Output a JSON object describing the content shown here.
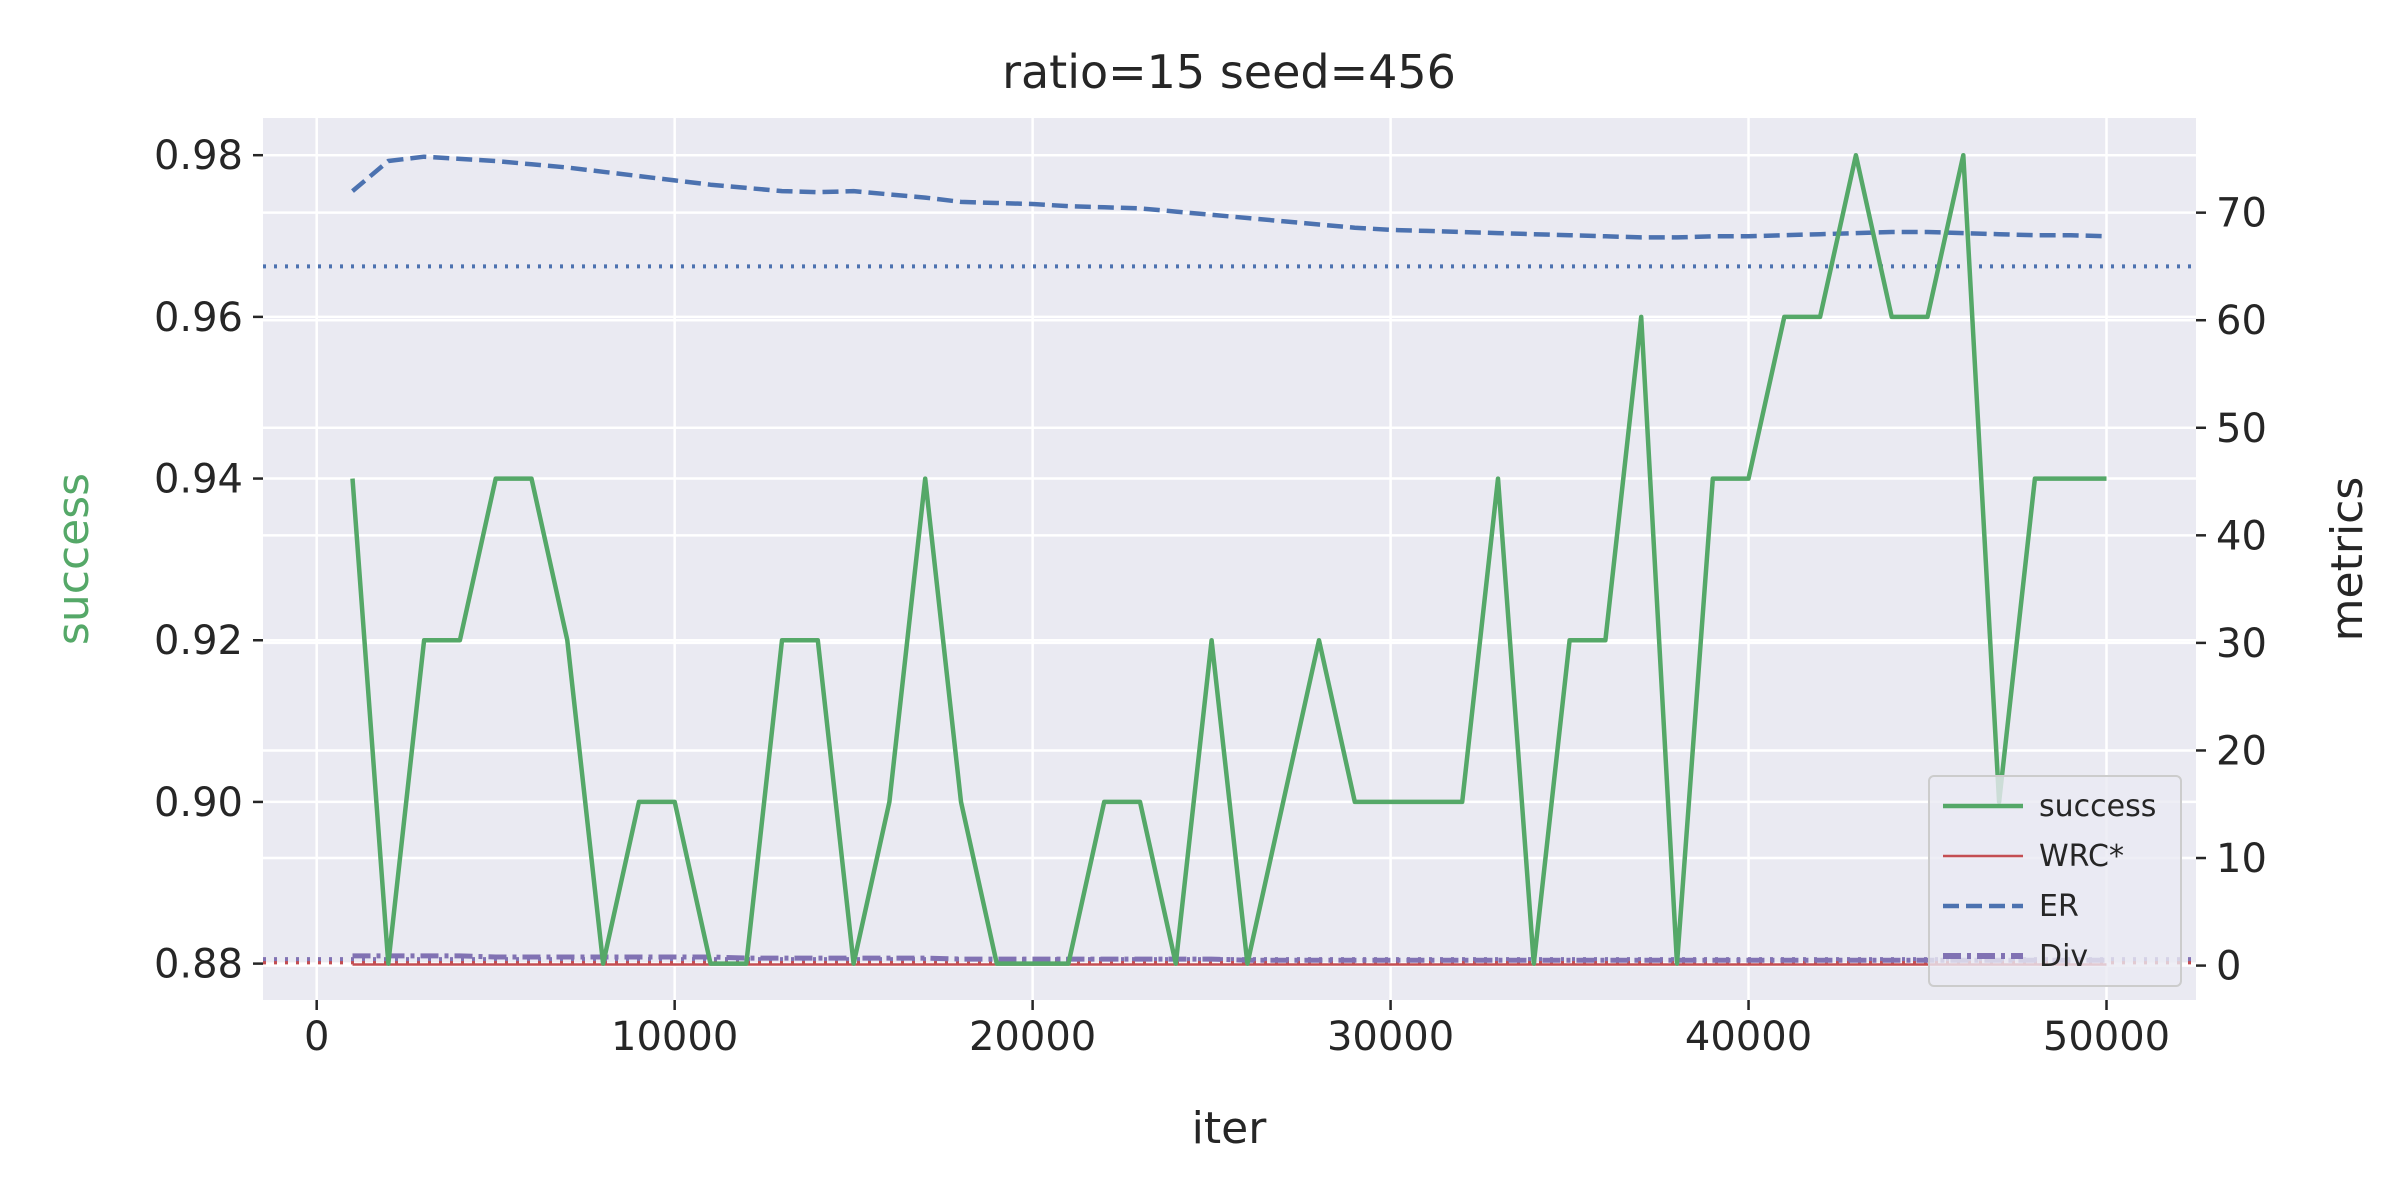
{
  "chart_data": {
    "type": "line",
    "title": "ratio=15 seed=456",
    "xlabel": "iter",
    "ylabel_left": "success",
    "ylabel_right": "metrics",
    "xlim": [
      -1500,
      52500
    ],
    "ylim_left": [
      0.8755,
      0.9846
    ],
    "ylim_right": [
      -3.2,
      78.8
    ],
    "xticks": [
      0,
      10000,
      20000,
      30000,
      40000,
      50000
    ],
    "xtick_labels": [
      "0",
      "10000",
      "20000",
      "30000",
      "40000",
      "50000"
    ],
    "yticks_left": [
      0.88,
      0.9,
      0.92,
      0.94,
      0.96,
      0.98
    ],
    "ytick_labels_left": [
      "0.88",
      "0.90",
      "0.92",
      "0.94",
      "0.96",
      "0.98"
    ],
    "yticks_right": [
      0,
      10,
      20,
      30,
      40,
      50,
      60,
      70
    ],
    "ytick_labels_right": [
      "0",
      "10",
      "20",
      "30",
      "40",
      "50",
      "60",
      "70"
    ],
    "grid": true,
    "legend_position": "lower-right",
    "x": [
      1000,
      2000,
      3000,
      4000,
      5000,
      6000,
      7000,
      8000,
      9000,
      10000,
      11000,
      12000,
      13000,
      14000,
      15000,
      16000,
      17000,
      18000,
      19000,
      20000,
      21000,
      22000,
      23000,
      24000,
      25000,
      26000,
      27000,
      28000,
      29000,
      30000,
      31000,
      32000,
      33000,
      34000,
      35000,
      36000,
      37000,
      38000,
      39000,
      40000,
      41000,
      42000,
      43000,
      44000,
      45000,
      46000,
      47000,
      48000,
      49000,
      50000
    ],
    "series": [
      {
        "name": "success",
        "axis": "left",
        "color": "#55a868",
        "style": "solid",
        "values": [
          0.94,
          0.88,
          0.92,
          0.92,
          0.94,
          0.94,
          0.92,
          0.88,
          0.9,
          0.9,
          0.88,
          0.88,
          0.92,
          0.92,
          0.88,
          0.9,
          0.94,
          0.9,
          0.88,
          0.88,
          0.88,
          0.9,
          0.9,
          0.88,
          0.92,
          0.88,
          0.9,
          0.92,
          0.9,
          0.9,
          0.9,
          0.9,
          0.94,
          0.88,
          0.92,
          0.92,
          0.96,
          0.88,
          0.94,
          0.94,
          0.96,
          0.96,
          0.98,
          0.96,
          0.96,
          0.98,
          0.9,
          0.94,
          0.94,
          0.94
        ]
      },
      {
        "name": "WRC*",
        "axis": "right",
        "color": "#c44e52",
        "style": "solid",
        "values": [
          0.1,
          0.1,
          0.1,
          0.1,
          0.1,
          0.1,
          0.1,
          0.1,
          0.1,
          0.1,
          0.1,
          0.1,
          0.1,
          0.1,
          0.1,
          0.1,
          0.1,
          0.1,
          0.1,
          0.1,
          0.1,
          0.1,
          0.1,
          0.1,
          0.1,
          0.1,
          0.1,
          0.1,
          0.1,
          0.1,
          0.1,
          0.1,
          0.1,
          0.1,
          0.1,
          0.1,
          0.1,
          0.1,
          0.1,
          0.1,
          0.1,
          0.1,
          0.1,
          0.1,
          0.1,
          0.1,
          0.1,
          0.1,
          0.1,
          0.1
        ]
      },
      {
        "name": "ER",
        "axis": "right",
        "color": "#4c72b0",
        "style": "dashed",
        "values": [
          72.0,
          74.8,
          75.2,
          75.0,
          74.8,
          74.5,
          74.2,
          73.8,
          73.4,
          73.0,
          72.6,
          72.3,
          72.0,
          71.9,
          72.0,
          71.7,
          71.4,
          71.0,
          70.9,
          70.8,
          70.6,
          70.5,
          70.4,
          70.1,
          69.8,
          69.5,
          69.2,
          68.9,
          68.6,
          68.4,
          68.3,
          68.2,
          68.1,
          68.0,
          67.9,
          67.8,
          67.7,
          67.7,
          67.8,
          67.8,
          67.9,
          68.0,
          68.1,
          68.2,
          68.2,
          68.1,
          68.0,
          67.9,
          67.9,
          67.8
        ]
      },
      {
        "name": "Div",
        "axis": "right",
        "color": "#8172b3",
        "style": "dashdot",
        "values": [
          0.9,
          0.9,
          0.9,
          0.9,
          0.8,
          0.8,
          0.8,
          0.8,
          0.8,
          0.8,
          0.8,
          0.7,
          0.7,
          0.7,
          0.7,
          0.7,
          0.7,
          0.6,
          0.6,
          0.6,
          0.6,
          0.6,
          0.6,
          0.6,
          0.6,
          0.5,
          0.5,
          0.5,
          0.5,
          0.5,
          0.5,
          0.5,
          0.5,
          0.5,
          0.5,
          0.5,
          0.5,
          0.5,
          0.5,
          0.5,
          0.5,
          0.5,
          0.5,
          0.5,
          0.5,
          0.5,
          0.5,
          0.5,
          0.5,
          0.5
        ]
      }
    ],
    "reference_lines": [
      {
        "axis": "right",
        "value": 65.0,
        "color": "#4c72b0",
        "style": "dotted"
      },
      {
        "axis": "right",
        "value": 0.3,
        "color": "#c44e52",
        "style": "dotted"
      },
      {
        "axis": "right",
        "value": 0.6,
        "color": "#8172b3",
        "style": "dotted"
      }
    ]
  }
}
